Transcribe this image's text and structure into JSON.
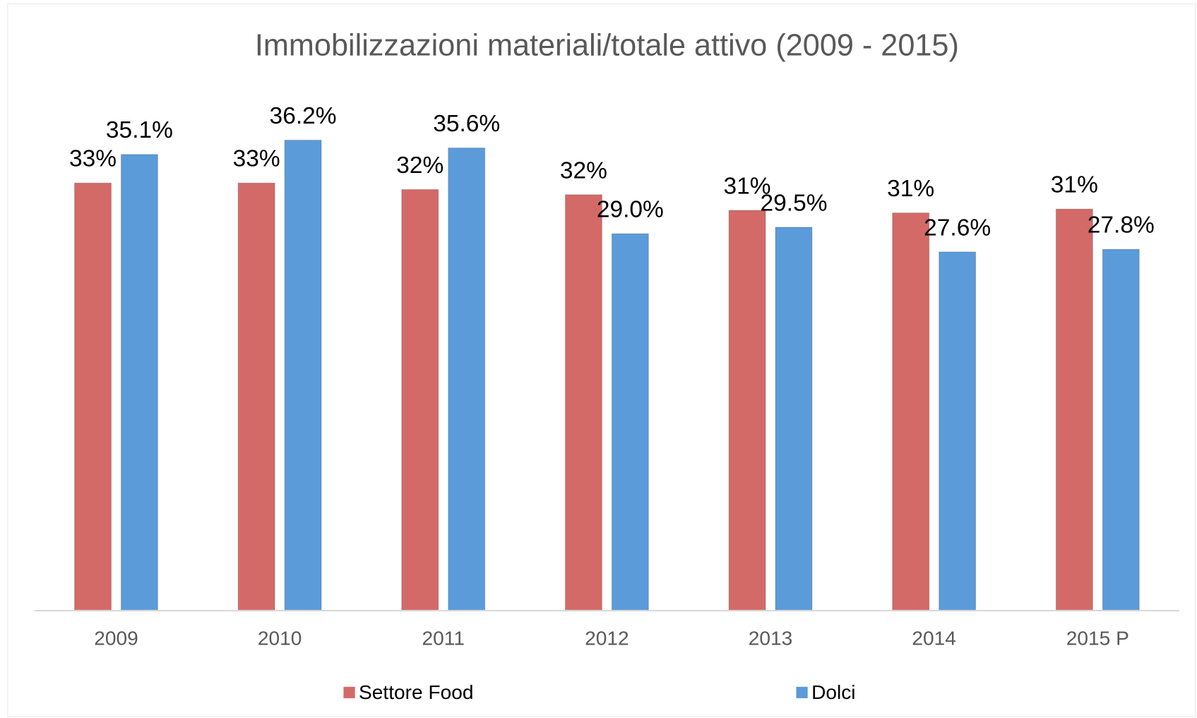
{
  "chart_data": {
    "type": "bar",
    "title": "Immobilizzazioni materiali/totale attivo (2009 - 2015)",
    "categories": [
      "2009",
      "2010",
      "2011",
      "2012",
      "2013",
      "2014",
      "2015 P"
    ],
    "series": [
      {
        "name": "Settore Food",
        "color": "#d46a68",
        "values": [
          32.9,
          32.9,
          32.4,
          32.0,
          30.8,
          30.6,
          30.9
        ],
        "value_labels": [
          "33%",
          "33%",
          "32%",
          "32%",
          "31%",
          "31%",
          "31%"
        ]
      },
      {
        "name": "Dolci",
        "color": "#5b9bd9",
        "values": [
          35.1,
          36.2,
          35.6,
          29.0,
          29.5,
          27.6,
          27.8
        ],
        "value_labels": [
          "35.1%",
          "36.2%",
          "35.6%",
          "29.0%",
          "29.5%",
          "27.6%",
          "27.8%"
        ]
      }
    ],
    "ylim": [
      0,
      40
    ],
    "legend": "bottom"
  }
}
